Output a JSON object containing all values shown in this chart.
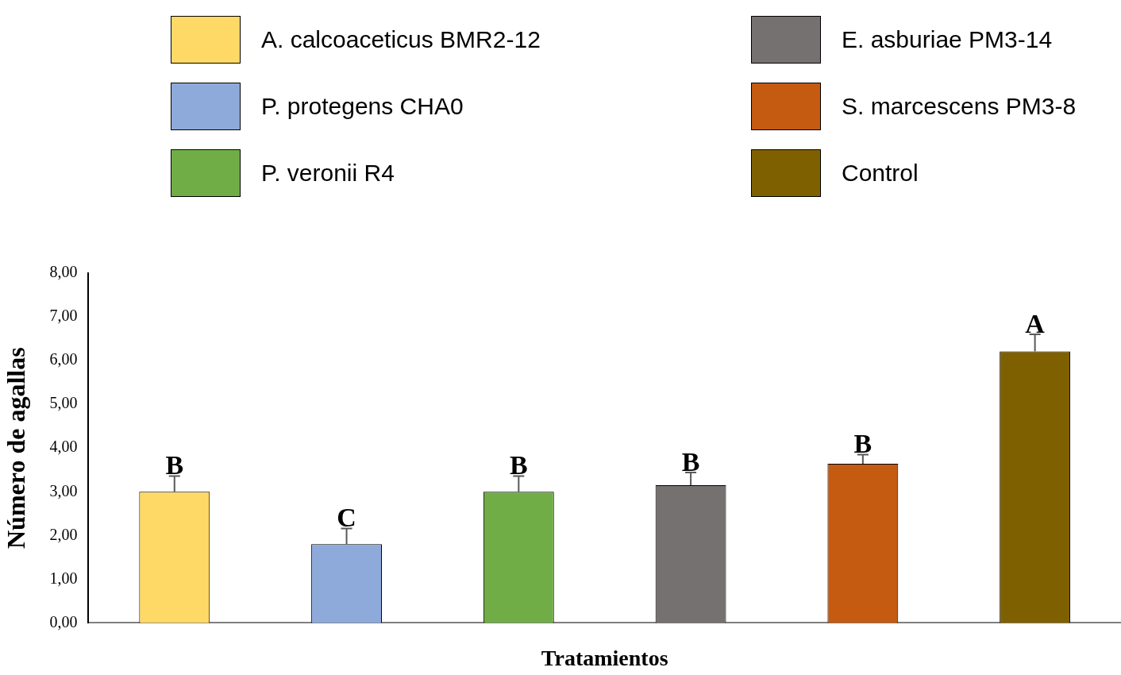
{
  "chart_data": {
    "type": "bar",
    "xlabel": "Tratamientos",
    "ylabel": "Número de agallas",
    "categories": [
      null,
      null,
      null,
      null,
      null,
      null
    ],
    "series": [
      {
        "name": "A. calcoaceticus BMR2-12",
        "color": "#ffd966",
        "values": [
          3.0,
          null,
          null,
          null,
          null,
          null
        ],
        "errors": [
          [
            3.0,
            3.36
          ],
          null,
          null,
          null,
          null,
          null
        ]
      },
      {
        "name": "P. protegens CHA0",
        "color": "#8eaadb",
        "values": [
          null,
          1.8,
          null,
          null,
          null,
          null
        ],
        "errors": [
          null,
          [
            1.8,
            2.16
          ],
          null,
          null,
          null,
          null
        ]
      },
      {
        "name": "P. veronii R4",
        "color": "#70ad47",
        "values": [
          null,
          null,
          3.0,
          null,
          null,
          null
        ],
        "errors": [
          null,
          null,
          [
            3.0,
            3.36
          ],
          null,
          null,
          null
        ]
      },
      {
        "name": "E. asburiae PM3-14",
        "color": "#767171",
        "values": [
          null,
          null,
          null,
          3.15,
          null,
          null
        ],
        "errors": [
          null,
          null,
          null,
          [
            3.15,
            3.44
          ],
          null,
          null
        ]
      },
      {
        "name": "S. marcescens PM3-8",
        "color": "#c55a11",
        "values": [
          null,
          null,
          null,
          null,
          3.64,
          null
        ],
        "errors": [
          null,
          null,
          null,
          null,
          [
            3.64,
            3.85
          ],
          null
        ]
      },
      {
        "name": "Control",
        "color": "#7f6000",
        "values": [
          null,
          null,
          null,
          null,
          null,
          6.21
        ],
        "errors": [
          null,
          null,
          null,
          null,
          null,
          [
            6.21,
            6.6
          ]
        ]
      }
    ],
    "annotations": [
      {
        "text": "B",
        "y": 3.36
      },
      {
        "text": "C",
        "y": 2.16
      },
      {
        "text": "B",
        "y": 3.36
      },
      {
        "text": "B",
        "y": 3.44
      },
      {
        "text": "B",
        "y": 3.85
      },
      {
        "text": "A",
        "y": 6.6
      }
    ],
    "ylim": [
      0,
      8
    ],
    "yticks": [
      {
        "value": 0,
        "label": "0,00"
      },
      {
        "value": 1,
        "label": "1,00"
      },
      {
        "value": 2,
        "label": "2,00"
      },
      {
        "value": 3,
        "label": "3,00"
      },
      {
        "value": 4,
        "label": "4,00"
      },
      {
        "value": 5,
        "label": "5,00"
      },
      {
        "value": 6,
        "label": "6,00"
      },
      {
        "value": 7,
        "label": "7,00"
      },
      {
        "value": 8,
        "label": "8,00"
      }
    ],
    "grid": false,
    "legend": "top"
  }
}
